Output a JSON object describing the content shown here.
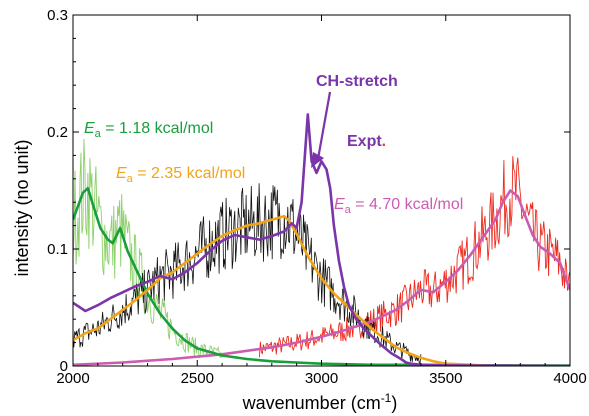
{
  "chart_data": {
    "type": "line",
    "xlabel_main": "wavenumber (cm",
    "xlabel_sup": "-1",
    "xlabel_end": ")",
    "ylabel": "intensity (no unit)",
    "xlim": [
      2000,
      4000
    ],
    "ylim": [
      0,
      0.3
    ],
    "x_ticks": [
      "2000",
      "2500",
      "3000",
      "3500",
      "4000"
    ],
    "y_ticks": [
      "0",
      "0.1",
      "0.2",
      "0.3"
    ],
    "grid": false,
    "colors": {
      "green": "#1a9e3c",
      "green_light": "#8cd06a",
      "orange": "#f0a418",
      "black": "#111111",
      "purple": "#7a35a8",
      "magenta": "#cc5cb0",
      "red": "#ee2a1e"
    },
    "annotations": {
      "green": {
        "prefix": "E",
        "sub": "a",
        "text": " = 1.18 kcal/mol"
      },
      "orange": {
        "prefix": "E",
        "sub": "a",
        "text": " = 2.35 kcal/mol"
      },
      "magenta": {
        "prefix": "E",
        "sub": "a",
        "text": " = 4.70 kcal/mol"
      },
      "ch_stretch": "CH-stretch",
      "expt": "Expt",
      "expt_dot": "."
    },
    "series": [
      {
        "key": "green_smooth",
        "x": [
          2000,
          2040,
          2060,
          2080,
          2110,
          2140,
          2160,
          2190,
          2220,
          2260,
          2300,
          2350,
          2400,
          2450,
          2500,
          2600,
          2700,
          2800,
          2900,
          3000,
          3200,
          3400,
          3600,
          4000
        ],
        "y": [
          0.125,
          0.148,
          0.152,
          0.138,
          0.118,
          0.108,
          0.105,
          0.118,
          0.098,
          0.08,
          0.062,
          0.045,
          0.032,
          0.022,
          0.015,
          0.009,
          0.006,
          0.004,
          0.003,
          0.002,
          0.001,
          0.001,
          0.0005,
          0.0003
        ]
      },
      {
        "key": "orange_smooth",
        "x": [
          2000,
          2050,
          2100,
          2150,
          2200,
          2250,
          2300,
          2350,
          2400,
          2450,
          2500,
          2550,
          2600,
          2650,
          2700,
          2750,
          2800,
          2850,
          2870,
          2900,
          2950,
          3000,
          3050,
          3100,
          3150,
          3200,
          3250,
          3300,
          3350,
          3400,
          3450,
          3500,
          3600,
          3700
        ],
        "y": [
          0.022,
          0.028,
          0.032,
          0.04,
          0.048,
          0.056,
          0.065,
          0.075,
          0.08,
          0.088,
          0.096,
          0.104,
          0.111,
          0.116,
          0.12,
          0.122,
          0.125,
          0.128,
          0.124,
          0.113,
          0.092,
          0.075,
          0.062,
          0.052,
          0.042,
          0.032,
          0.024,
          0.016,
          0.011,
          0.007,
          0.004,
          0.002,
          0.001,
          0
        ]
      },
      {
        "key": "purple_expt",
        "x": [
          2000,
          2050,
          2100,
          2150,
          2200,
          2250,
          2300,
          2350,
          2400,
          2450,
          2500,
          2550,
          2600,
          2650,
          2700,
          2750,
          2800,
          2850,
          2880,
          2900,
          2920,
          2935,
          2945,
          2960,
          2980,
          3000,
          3020,
          3035,
          3050,
          3070,
          3090,
          3110,
          3140,
          3170,
          3200,
          3240,
          3280,
          3320,
          3340,
          3360,
          3400,
          3500,
          4000
        ],
        "y": [
          0.054,
          0.047,
          0.052,
          0.058,
          0.063,
          0.068,
          0.072,
          0.077,
          0.074,
          0.08,
          0.088,
          0.098,
          0.107,
          0.112,
          0.11,
          0.108,
          0.111,
          0.115,
          0.122,
          0.118,
          0.14,
          0.185,
          0.215,
          0.175,
          0.165,
          0.175,
          0.168,
          0.152,
          0.12,
          0.09,
          0.068,
          0.052,
          0.04,
          0.032,
          0.026,
          0.018,
          0.011,
          0.006,
          0.003,
          0.002,
          0.001,
          0.0005,
          0
        ]
      },
      {
        "key": "magenta_smooth",
        "x": [
          2000,
          2200,
          2400,
          2600,
          2800,
          2900,
          3000,
          3100,
          3200,
          3250,
          3300,
          3350,
          3400,
          3450,
          3500,
          3550,
          3600,
          3650,
          3700,
          3730,
          3760,
          3790,
          3820,
          3850,
          3880,
          3920,
          3960,
          4000
        ],
        "y": [
          0.001,
          0.003,
          0.006,
          0.01,
          0.016,
          0.02,
          0.025,
          0.031,
          0.038,
          0.043,
          0.048,
          0.056,
          0.065,
          0.063,
          0.072,
          0.082,
          0.095,
          0.11,
          0.125,
          0.14,
          0.15,
          0.145,
          0.128,
          0.112,
          0.102,
          0.096,
          0.088,
          0.065
        ]
      }
    ]
  }
}
